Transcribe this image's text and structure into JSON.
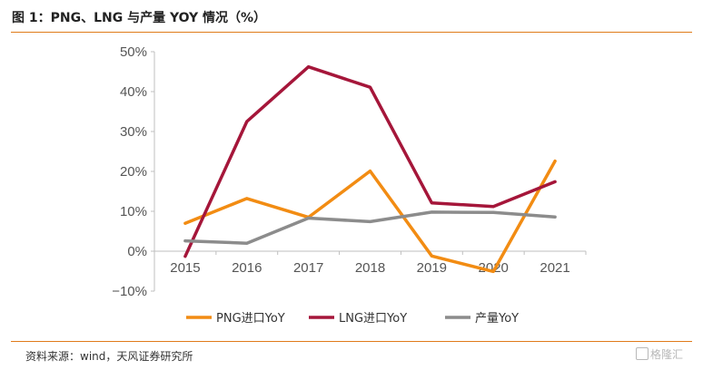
{
  "figure": {
    "title": "图 1：PNG、LNG 与产量 YOY 情况（%）",
    "source": "资料来源：wind，天风证券研究所",
    "watermark": "格隆汇"
  },
  "colors": {
    "accent_rule": "#e07b1a",
    "axis": "#bfbfbf"
  },
  "chart_data": {
    "type": "line",
    "title": "",
    "xlabel": "",
    "ylabel": "",
    "categories": [
      "2015",
      "2016",
      "2017",
      "2018",
      "2019",
      "2020",
      "2021"
    ],
    "ylim": [
      -10,
      50
    ],
    "yticks": [
      -10,
      0,
      10,
      20,
      30,
      40,
      50
    ],
    "ytick_labels": [
      "−10%",
      "0%",
      "10%",
      "20%",
      "30%",
      "40%",
      "50%"
    ],
    "grid": false,
    "legend_position": "bottom",
    "series": [
      {
        "name": "PNG进口YoY",
        "color": "#f28c13",
        "values": [
          7.0,
          13.2,
          8.5,
          20.1,
          -1.2,
          -5.1,
          22.6
        ]
      },
      {
        "name": "LNG进口YoY",
        "color": "#a5163a",
        "values": [
          -1.3,
          32.5,
          46.2,
          41.1,
          12.1,
          11.2,
          17.4
        ]
      },
      {
        "name": "产量YoY",
        "color": "#8c8c8c",
        "values": [
          2.6,
          2.0,
          8.3,
          7.4,
          9.8,
          9.7,
          8.6
        ]
      }
    ]
  }
}
